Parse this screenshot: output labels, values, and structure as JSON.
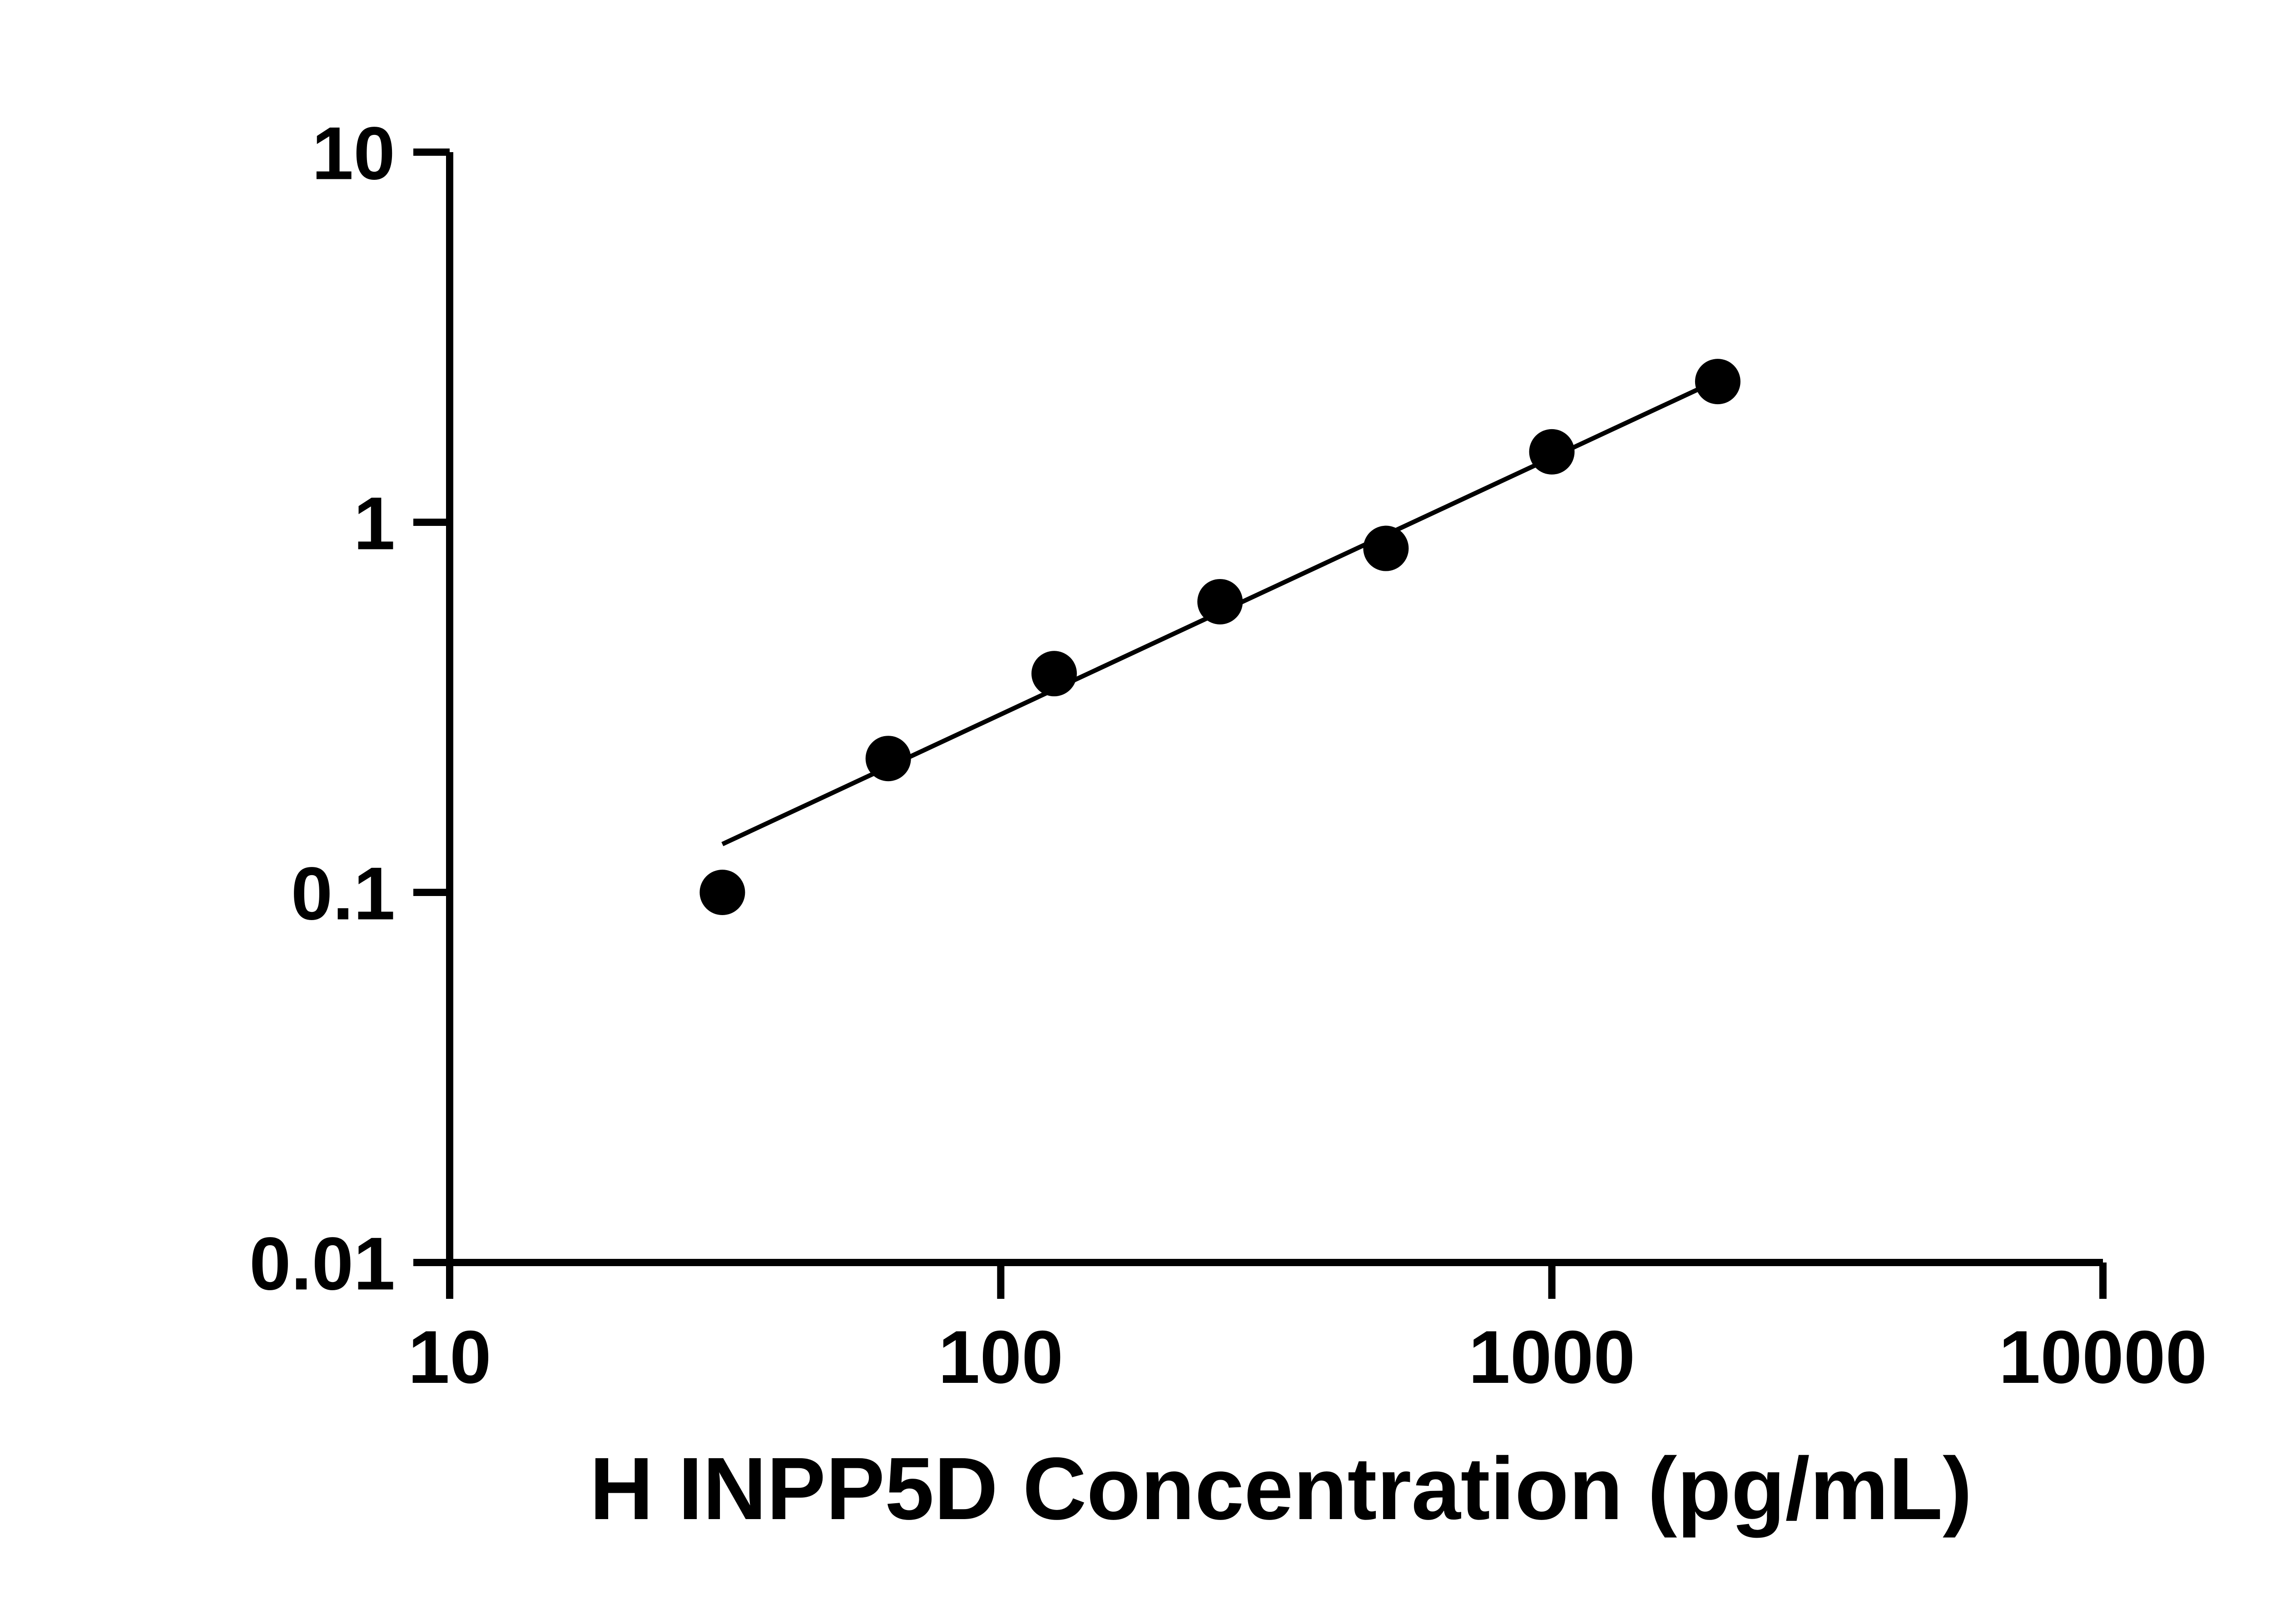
{
  "figure": {
    "background": "#ffffff"
  },
  "chart_data": {
    "type": "scatter",
    "title": "",
    "xlabel": "H INPP5D Concentration (pg/mL)",
    "ylabel": "",
    "xscale": "log",
    "yscale": "log",
    "xlim": [
      10,
      10000
    ],
    "ylim": [
      0.01,
      10
    ],
    "x_ticks": [
      10,
      100,
      1000,
      10000
    ],
    "x_tick_labels": [
      "10",
      "100",
      "1000",
      "10000"
    ],
    "y_ticks": [
      0.01,
      0.1,
      1,
      10
    ],
    "y_tick_labels": [
      "0.01",
      "0.1",
      "1",
      "10"
    ],
    "grid": false,
    "legend": "none",
    "series": [
      {
        "name": "standard-curve-fit-line",
        "type": "line",
        "x": [
          31.25,
          2000
        ],
        "y": [
          0.135,
          2.42
        ],
        "color": "#000000"
      },
      {
        "name": "standard-curve-points",
        "type": "scatter",
        "marker": "circle",
        "x": [
          31.25,
          62.5,
          125,
          250,
          500,
          1000,
          2000
        ],
        "y": [
          0.1,
          0.23,
          0.39,
          0.61,
          0.85,
          1.55,
          2.4
        ],
        "color": "#000000"
      }
    ],
    "colors": {
      "axis": "#000000",
      "background": "#ffffff",
      "marker": "#000000"
    }
  }
}
